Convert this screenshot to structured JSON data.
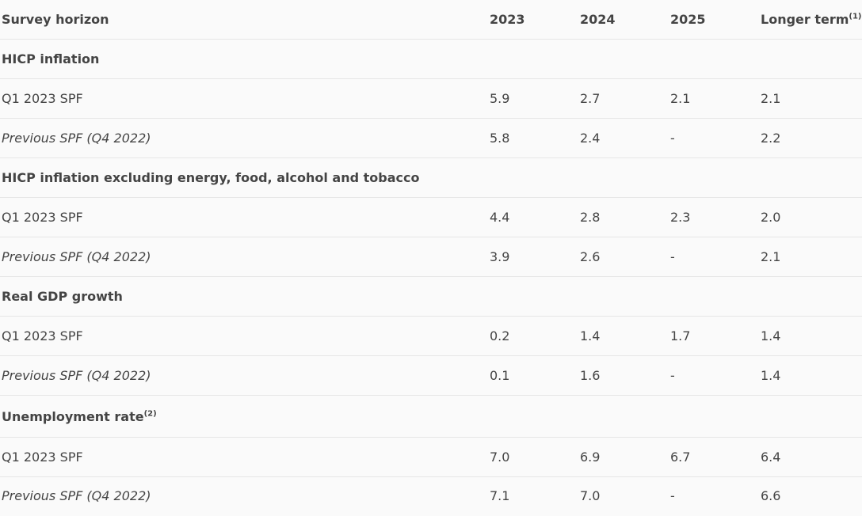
{
  "table": {
    "header": {
      "cells": [
        "Survey horizon",
        "2023",
        "2024",
        "2025",
        "Longer term"
      ],
      "last_note": "(1)"
    },
    "sections": [
      {
        "title": "HICP inflation",
        "rows": [
          [
            "Q1 2023 SPF",
            "5.9",
            "2.7",
            "2.1",
            "2.1"
          ],
          [
            "Previous SPF (Q4 2022)",
            "5.8",
            "2.4",
            "-",
            "2.2"
          ]
        ]
      },
      {
        "title": "HICP inflation excluding energy, food, alcohol and tobacco",
        "rows": [
          [
            "Q1 2023 SPF",
            "4.4",
            "2.8",
            "2.3",
            "2.0"
          ],
          [
            "Previous SPF (Q4 2022)",
            "3.9",
            "2.6",
            "-",
            "2.1"
          ]
        ]
      },
      {
        "title": "Real GDP growth",
        "rows": [
          [
            "Q1 2023 SPF",
            "0.2",
            "1.4",
            "1.7",
            "1.4"
          ],
          [
            "Previous SPF (Q4 2022)",
            "0.1",
            "1.6",
            "-",
            "1.4"
          ]
        ]
      },
      {
        "title": "Unemployment rate",
        "note": "(2)",
        "rows": [
          [
            "Q1 2023 SPF",
            "7.0",
            "6.9",
            "6.7",
            "6.4"
          ],
          [
            "Previous SPF (Q4 2022)",
            "7.1",
            "7.0",
            "-",
            "6.6"
          ]
        ]
      }
    ]
  }
}
